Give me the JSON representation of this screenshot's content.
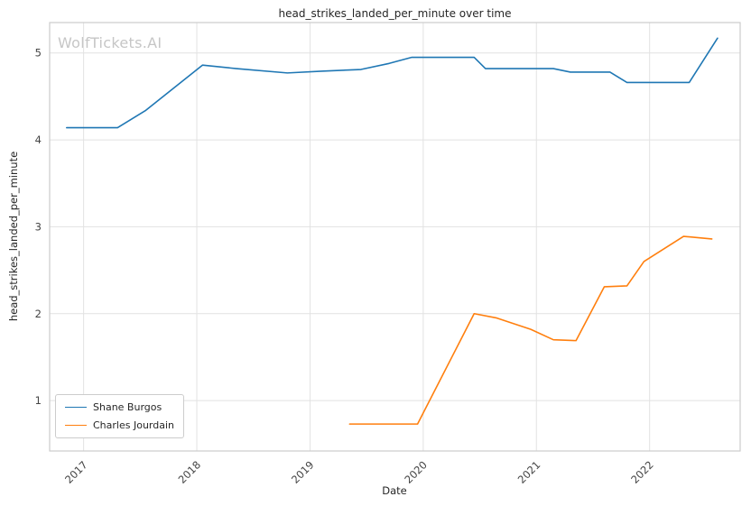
{
  "watermark": "WolfTickets.AI",
  "chart_data": {
    "type": "line",
    "title": "head_strikes_landed_per_minute over time",
    "xlabel": "Date",
    "ylabel": "head_strikes_landed_per_minute",
    "xlim": [
      2016.7,
      2022.8
    ],
    "ylim": [
      0.42,
      5.35
    ],
    "xticks": [
      2017,
      2018,
      2019,
      2020,
      2021,
      2022
    ],
    "yticks": [
      1,
      2,
      3,
      4,
      5
    ],
    "grid": true,
    "legend_position": "lower-left",
    "colors": {
      "grid": "#e2e2e2",
      "spine": "#cccccc",
      "tick_label": "#444444"
    },
    "series": [
      {
        "name": "Shane Burgos",
        "color": "#1f77b4",
        "points": [
          [
            2016.85,
            4.14
          ],
          [
            2017.3,
            4.14
          ],
          [
            2017.55,
            4.34
          ],
          [
            2018.05,
            4.86
          ],
          [
            2018.35,
            4.82
          ],
          [
            2018.8,
            4.77
          ],
          [
            2019.1,
            4.79
          ],
          [
            2019.45,
            4.81
          ],
          [
            2019.7,
            4.88
          ],
          [
            2019.9,
            4.95
          ],
          [
            2020.15,
            4.95
          ],
          [
            2020.45,
            4.95
          ],
          [
            2020.55,
            4.82
          ],
          [
            2020.9,
            4.82
          ],
          [
            2021.15,
            4.82
          ],
          [
            2021.3,
            4.78
          ],
          [
            2021.65,
            4.78
          ],
          [
            2021.8,
            4.66
          ],
          [
            2022.1,
            4.66
          ],
          [
            2022.35,
            4.66
          ],
          [
            2022.6,
            5.17
          ]
        ]
      },
      {
        "name": "Charles Jourdain",
        "color": "#ff7f0e",
        "points": [
          [
            2019.35,
            0.73
          ],
          [
            2019.65,
            0.73
          ],
          [
            2019.95,
            0.73
          ],
          [
            2020.45,
            2.0
          ],
          [
            2020.65,
            1.95
          ],
          [
            2020.95,
            1.82
          ],
          [
            2021.15,
            1.7
          ],
          [
            2021.35,
            1.69
          ],
          [
            2021.6,
            2.31
          ],
          [
            2021.8,
            2.32
          ],
          [
            2021.95,
            2.6
          ],
          [
            2022.3,
            2.89
          ],
          [
            2022.55,
            2.86
          ]
        ]
      }
    ]
  }
}
